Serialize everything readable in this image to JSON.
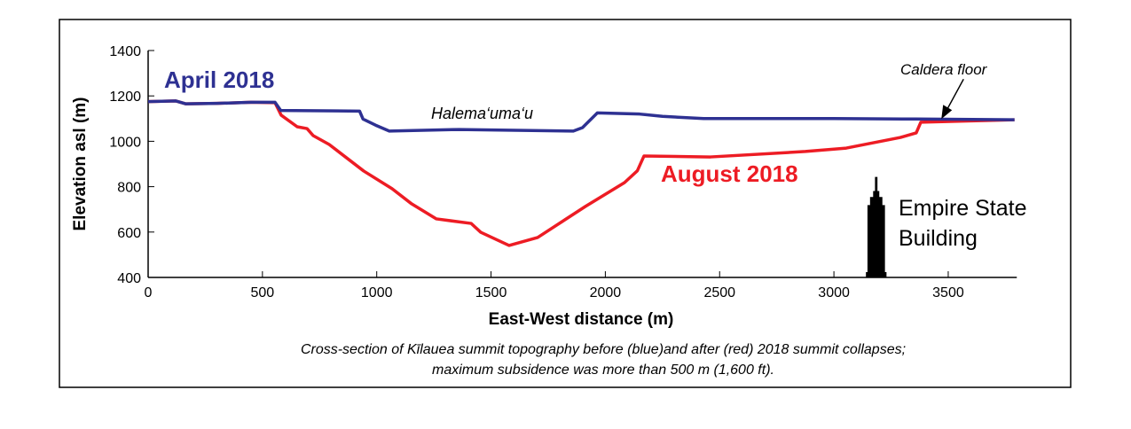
{
  "chart_data": {
    "type": "line",
    "xlabel": "East-West distance (m)",
    "ylabel": "Elevation asl (m)",
    "xlim": [
      0,
      3800
    ],
    "ylim": [
      400,
      1400
    ],
    "xticks": [
      0,
      500,
      1000,
      1500,
      2000,
      2500,
      3000,
      3500
    ],
    "yticks": [
      400,
      600,
      800,
      1000,
      1200,
      1400
    ],
    "grid": false,
    "series": [
      {
        "name": "April 2018",
        "color": "#2e3192",
        "points": [
          [
            0,
            1175
          ],
          [
            120,
            1178
          ],
          [
            165,
            1165
          ],
          [
            300,
            1167
          ],
          [
            450,
            1172
          ],
          [
            555,
            1172
          ],
          [
            580,
            1136
          ],
          [
            925,
            1133
          ],
          [
            940,
            1098
          ],
          [
            995,
            1071
          ],
          [
            1055,
            1045
          ],
          [
            1360,
            1052
          ],
          [
            1860,
            1045
          ],
          [
            1900,
            1060
          ],
          [
            1965,
            1125
          ],
          [
            2150,
            1120
          ],
          [
            2250,
            1110
          ],
          [
            2430,
            1100
          ],
          [
            2660,
            1100
          ],
          [
            3000,
            1100
          ],
          [
            3360,
            1098
          ],
          [
            3790,
            1095
          ]
        ]
      },
      {
        "name": "August 2018",
        "color": "#ed1c24",
        "points": [
          [
            0,
            1175
          ],
          [
            120,
            1178
          ],
          [
            165,
            1165
          ],
          [
            300,
            1167
          ],
          [
            450,
            1172
          ],
          [
            555,
            1170
          ],
          [
            582,
            1115
          ],
          [
            652,
            1064
          ],
          [
            695,
            1056
          ],
          [
            722,
            1025
          ],
          [
            792,
            986
          ],
          [
            943,
            869
          ],
          [
            1067,
            791
          ],
          [
            1153,
            724
          ],
          [
            1261,
            658
          ],
          [
            1413,
            638
          ],
          [
            1455,
            599
          ],
          [
            1579,
            541
          ],
          [
            1704,
            576
          ],
          [
            1913,
            713
          ],
          [
            2084,
            818
          ],
          [
            2140,
            870
          ],
          [
            2169,
            935
          ],
          [
            2460,
            931
          ],
          [
            2875,
            955
          ],
          [
            3054,
            970
          ],
          [
            3291,
            1017
          ],
          [
            3360,
            1037
          ],
          [
            3380,
            1084
          ],
          [
            3790,
            1095
          ]
        ]
      }
    ],
    "annotations": {
      "crater": "Halema‘uma‘u",
      "caldera": "Caldera floor",
      "caldera_point": [
        3470,
        1098
      ],
      "building": "Empire State",
      "building2": "Building",
      "building_x": 3185,
      "building_height_m": 443
    },
    "caption_line1": "Cross-section of Kīlauea summit topography before (blue)and after (red) 2018 summit collapses;",
    "caption_line2": "maximum subsidence was more than 500 m (1,600 ft)."
  }
}
